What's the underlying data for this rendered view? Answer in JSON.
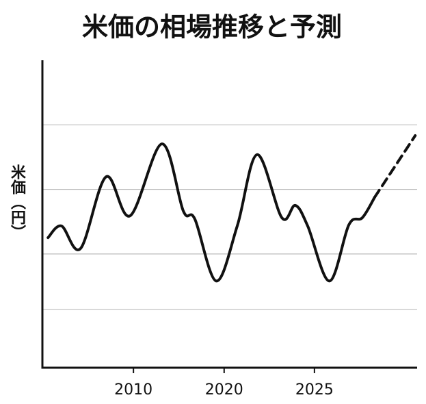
{
  "chart_data": {
    "type": "line",
    "title": "米価の相場推移と予測",
    "ylabel": "米価（円）",
    "xlim": [
      0,
      100
    ],
    "ylim": [
      0,
      100
    ],
    "xticks": [
      {
        "value": 24.3,
        "label": "2010"
      },
      {
        "value": 48.5,
        "label": "2020"
      },
      {
        "value": 72.6,
        "label": "2025"
      }
    ],
    "ygrid": [
      19,
      37,
      58,
      79
    ],
    "grid": true,
    "series": [
      {
        "color": "#111111",
        "style": "solid",
        "x": [
          1.5,
          5.1,
          10.2,
          17.0,
          23.4,
          31.9,
          37.6,
          40.7,
          46.4,
          52.0,
          57.3,
          63.9,
          67.5,
          70.8,
          76.6,
          81.8,
          85.4,
          88.7
        ],
        "values": [
          42.3,
          46.1,
          38.8,
          62.1,
          49.4,
          72.8,
          51.0,
          48.3,
          28.2,
          46.1,
          69.3,
          48.8,
          52.8,
          46.1,
          28.2,
          46.5,
          48.8,
          55.5
        ]
      },
      {
        "color": "#111111",
        "style": "dashed",
        "x": [
          88.7,
          99.5
        ],
        "values": [
          55.5,
          75.5
        ]
      }
    ]
  }
}
